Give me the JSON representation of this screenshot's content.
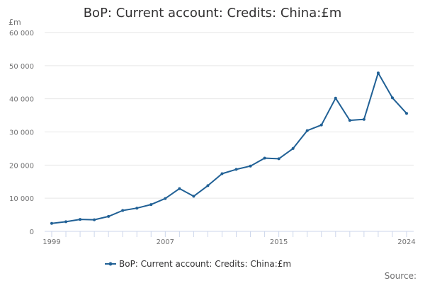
{
  "chart_data": {
    "type": "line",
    "title": "BoP: Current account: Credits: China:£m",
    "unit_label": "£m",
    "x": [
      1999,
      2000,
      2001,
      2002,
      2003,
      2004,
      2005,
      2006,
      2007,
      2008,
      2009,
      2010,
      2011,
      2012,
      2013,
      2014,
      2015,
      2016,
      2017,
      2018,
      2019,
      2020,
      2021,
      2022,
      2023,
      2024
    ],
    "x_tick_labels": [
      "1999",
      "2007",
      "2015",
      "2024"
    ],
    "x_tick_values": [
      1999,
      2007,
      2015,
      2024
    ],
    "ylim": [
      0,
      60000
    ],
    "y_tick_values": [
      0,
      10000,
      20000,
      30000,
      40000,
      50000,
      60000
    ],
    "y_tick_labels": [
      "0",
      "10 000",
      "20 000",
      "30 000",
      "40 000",
      "50 000",
      "60 000"
    ],
    "grid": true,
    "legend_position": "bottom",
    "series": [
      {
        "name": "BoP: Current account: Credits: China:£m",
        "color": "#206095",
        "values": [
          2400,
          2900,
          3600,
          3500,
          4500,
          6300,
          7000,
          8100,
          9900,
          12900,
          10600,
          13800,
          17400,
          18700,
          19700,
          22100,
          21900,
          25000,
          30400,
          32100,
          40200,
          33500,
          33800,
          47800,
          40300,
          35600
        ]
      }
    ]
  },
  "footer": {
    "source_label": "Source:"
  }
}
